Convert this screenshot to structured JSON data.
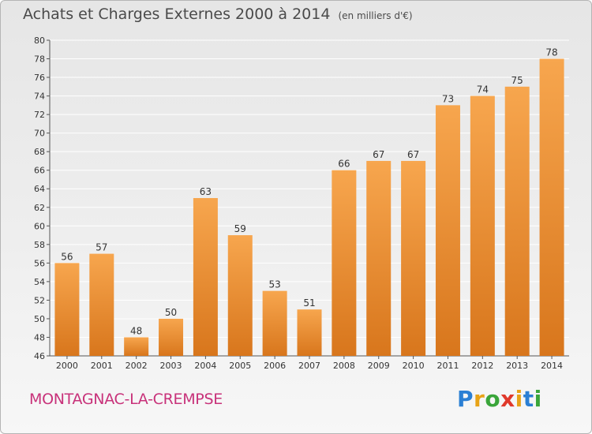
{
  "header": {
    "title": "Achats et Charges Externes 2000 à 2014",
    "unit": "(en milliers d'€)"
  },
  "footer": {
    "commune": "MONTAGNAC-LA-CREMPSE",
    "logo_text": "Proxiti",
    "logo_colors": [
      "#2b7fd4",
      "#e8a317",
      "#3aa53a",
      "#e0392b",
      "#e8a317",
      "#2b7fd4",
      "#3aa53a"
    ]
  },
  "colors": {
    "bar_top": "#f7a64e",
    "bar_bottom": "#d8761c",
    "grid": "#ffffff",
    "axis_text": "#333333"
  },
  "chart_data": {
    "type": "bar",
    "title": "Achats et Charges Externes 2000 à 2014",
    "categories": [
      "2000",
      "2001",
      "2002",
      "2003",
      "2004",
      "2005",
      "2006",
      "2007",
      "2008",
      "2009",
      "2010",
      "2011",
      "2012",
      "2013",
      "2014"
    ],
    "values": [
      56,
      57,
      48,
      50,
      63,
      59,
      53,
      51,
      66,
      67,
      67,
      73,
      74,
      75,
      78
    ],
    "ylim": [
      46,
      80
    ],
    "yticks": [
      46,
      48,
      50,
      52,
      54,
      56,
      58,
      60,
      62,
      64,
      66,
      68,
      70,
      72,
      74,
      76,
      78,
      80
    ],
    "grid": true,
    "data_labels": true
  }
}
